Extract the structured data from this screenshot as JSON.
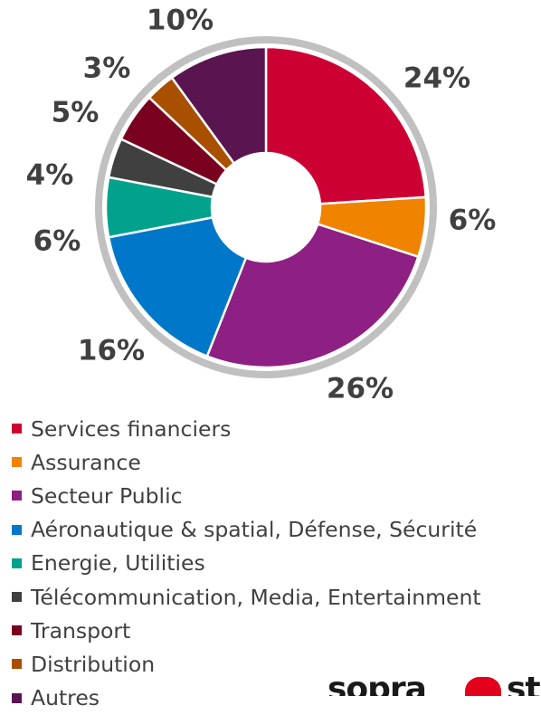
{
  "chart_data": {
    "type": "pie",
    "donut": true,
    "slices": [
      {
        "label": "Services financiers",
        "value": 24,
        "value_label": "24%",
        "color": "#cd0033"
      },
      {
        "label": "Assurance",
        "value": 6,
        "value_label": "6%",
        "color": "#f08300"
      },
      {
        "label": "Secteur Public",
        "value": 26,
        "value_label": "26%",
        "color": "#8e1f83"
      },
      {
        "label": "Aéronautique & spatial, Défense, Sécurité",
        "value": 16,
        "value_label": "16%",
        "color": "#0077c8"
      },
      {
        "label": "Energie, Utilities",
        "value": 6,
        "value_label": "6%",
        "color": "#00a28c"
      },
      {
        "label": "Télécommunication, Media, Entertainment",
        "value": 4,
        "value_label": "4%",
        "color": "#404040"
      },
      {
        "label": "Transport",
        "value": 5,
        "value_label": "5%",
        "color": "#7a0020"
      },
      {
        "label": "Distribution",
        "value": 3,
        "value_label": "3%",
        "color": "#a85000"
      },
      {
        "label": "Autres",
        "value": 10,
        "value_label": "10%",
        "color": "#5a1450"
      }
    ],
    "legend_position": "bottom",
    "ring_color": "#c0c0c0"
  },
  "logo": {
    "text": "sopra",
    "suffix": "ste",
    "accent_color": "#e2001a"
  }
}
